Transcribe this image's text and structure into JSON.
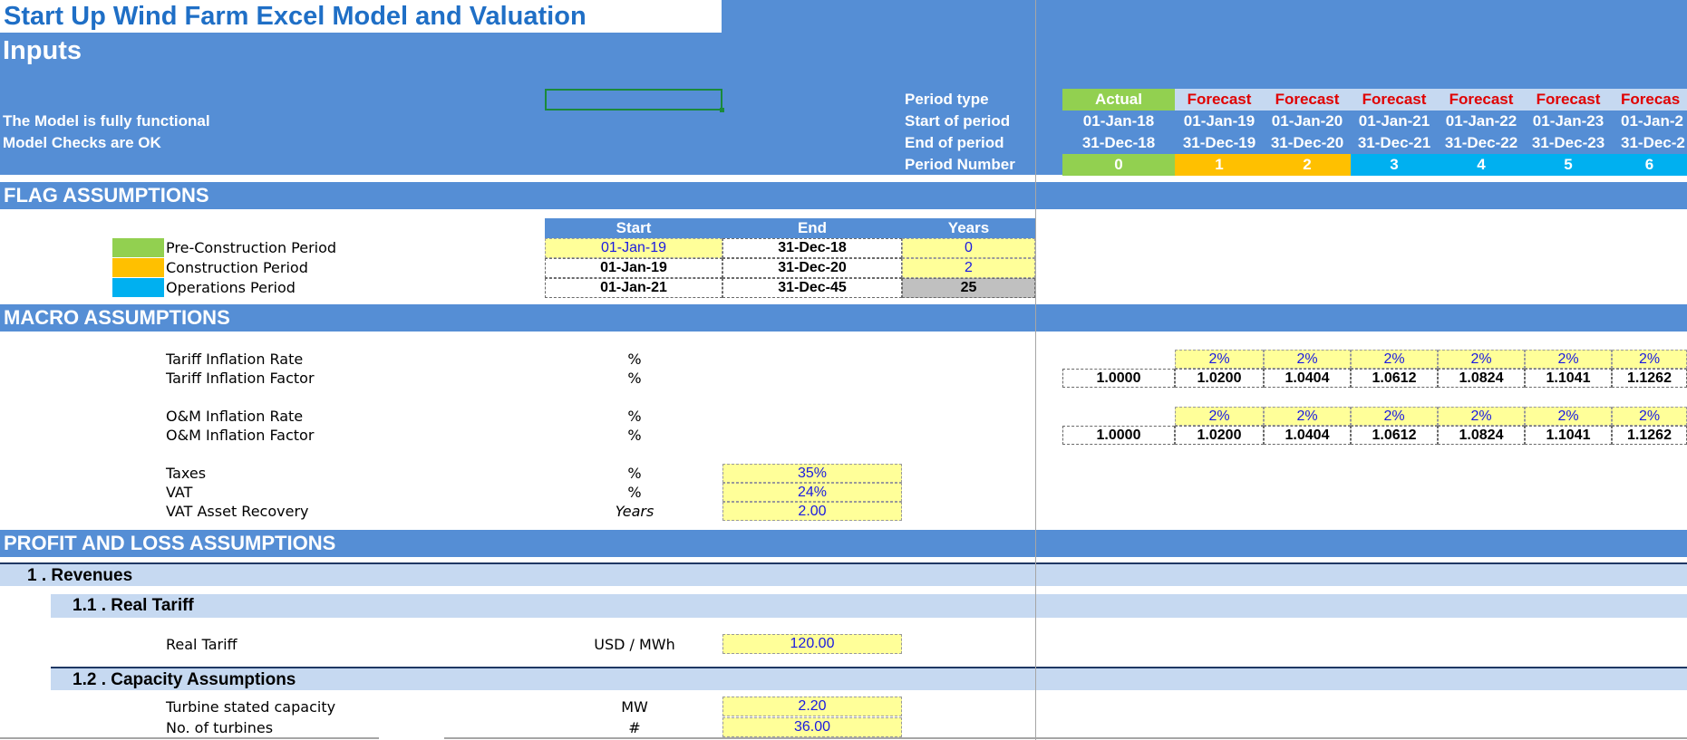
{
  "title": "Start Up Wind Farm Excel Model and Valuation",
  "subtitle": "Inputs",
  "status": {
    "functional": "The Model is fully functional",
    "checks": "Model Checks are OK"
  },
  "period_labels": {
    "type": "Period type",
    "start": "Start of period",
    "end": "End of period",
    "number": "Period Number"
  },
  "periods": [
    {
      "type": "Actual",
      "start": "01-Jan-18",
      "end": "31-Dec-18",
      "number": "0"
    },
    {
      "type": "Forecast",
      "start": "01-Jan-19",
      "end": "31-Dec-19",
      "number": "1"
    },
    {
      "type": "Forecast",
      "start": "01-Jan-20",
      "end": "31-Dec-20",
      "number": "2"
    },
    {
      "type": "Forecast",
      "start": "01-Jan-21",
      "end": "31-Dec-21",
      "number": "3"
    },
    {
      "type": "Forecast",
      "start": "01-Jan-22",
      "end": "31-Dec-22",
      "number": "4"
    },
    {
      "type": "Forecast",
      "start": "01-Jan-23",
      "end": "31-Dec-23",
      "number": "5"
    },
    {
      "type": "Forecas",
      "start": "01-Jan-2",
      "end": "31-Dec-2",
      "number": "6"
    }
  ],
  "period_colors": [
    "#92d050",
    "#ffc000",
    "#ffc000",
    "#00b0f0",
    "#00b0f0",
    "#00b0f0",
    "#00b0f0"
  ],
  "sections": {
    "flag": "FLAG ASSUMPTIONS",
    "macro": "MACRO ASSUMPTIONS",
    "pl": "PROFIT AND LOSS ASSUMPTIONS"
  },
  "flags": {
    "headers": {
      "start": "Start",
      "end": "End",
      "years": "Years"
    },
    "rows": [
      {
        "label": "Pre-Construction Period",
        "color": "#92d050",
        "start": "01-Jan-19",
        "end": "31-Dec-18",
        "years": "0"
      },
      {
        "label": "Construction Period",
        "color": "#ffc000",
        "start": "01-Jan-19",
        "end": "31-Dec-20",
        "years": "2"
      },
      {
        "label": "Operations Period",
        "color": "#00b0f0",
        "start": "01-Jan-21",
        "end": "31-Dec-45",
        "years": "25"
      }
    ]
  },
  "macro": {
    "tariff_rate": {
      "label": "Tariff Inflation Rate",
      "unit": "%",
      "values": [
        "2%",
        "2%",
        "2%",
        "2%",
        "2%",
        "2%"
      ]
    },
    "tariff_factor": {
      "label": "Tariff Inflation Factor",
      "unit": "%",
      "values": [
        "1.0000",
        "1.0200",
        "1.0404",
        "1.0612",
        "1.0824",
        "1.1041",
        "1.1262"
      ]
    },
    "om_rate": {
      "label": "O&M Inflation Rate",
      "unit": "%",
      "values": [
        "2%",
        "2%",
        "2%",
        "2%",
        "2%",
        "2%"
      ]
    },
    "om_factor": {
      "label": "O&M Inflation Factor",
      "unit": "%",
      "values": [
        "1.0000",
        "1.0200",
        "1.0404",
        "1.0612",
        "1.0824",
        "1.1041",
        "1.1262"
      ]
    },
    "taxes": {
      "label": "Taxes",
      "unit": "%",
      "value": "35%"
    },
    "vat": {
      "label": "VAT",
      "unit": "%",
      "value": "24%"
    },
    "vat_recovery": {
      "label": "VAT Asset Recovery",
      "unit": "Years",
      "value": "2.00"
    }
  },
  "pl": {
    "revenues": "1 . Revenues",
    "real_tariff_head": "1.1 . Real Tariff",
    "real_tariff": {
      "label": "Real Tariff",
      "unit": "USD / MWh",
      "value": "120.00"
    },
    "capacity_head": "1.2 . Capacity Assumptions",
    "turbine_capacity": {
      "label": "Turbine stated capacity",
      "unit": "MW",
      "value": "2.20"
    },
    "turbines": {
      "label": "No. of turbines",
      "unit": "#",
      "value": "36.00"
    }
  }
}
